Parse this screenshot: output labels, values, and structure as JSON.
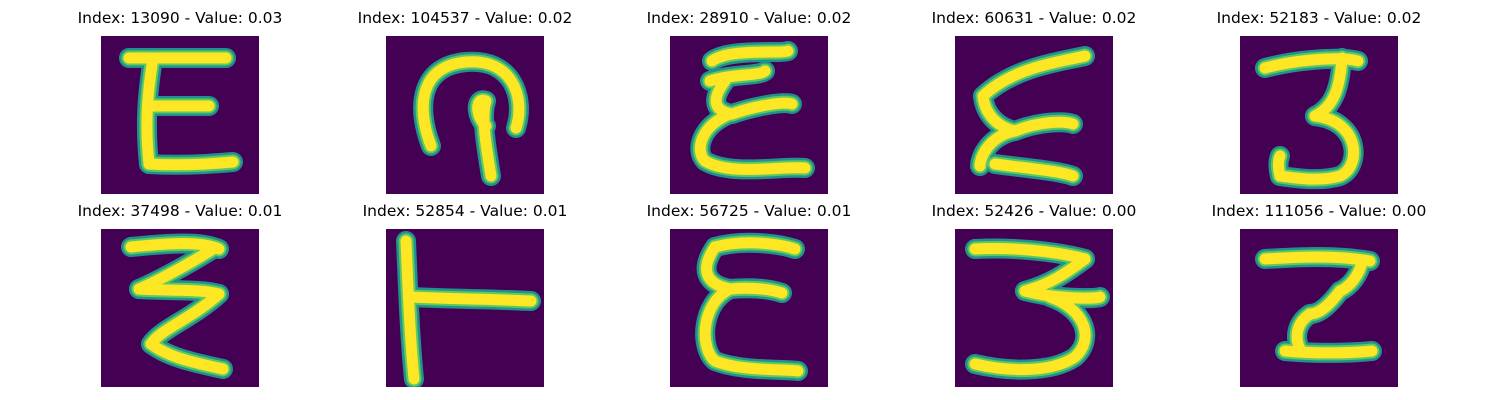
{
  "panels": [
    {
      "title": "Index: 13090 - Value: 0.03",
      "glyph": "E",
      "glyph_desc": "E-shaped handwritten sample"
    },
    {
      "title": "Index: 104537 - Value: 0.02",
      "glyph": "arch",
      "glyph_desc": "arch / hook shaped sample"
    },
    {
      "title": "Index: 28910 - Value: 0.02",
      "glyph": "E-curly",
      "glyph_desc": "curly E-shaped sample"
    },
    {
      "title": "Index: 60631 - Value: 0.02",
      "glyph": "Z-slant",
      "glyph_desc": "slanted zigzag sample"
    },
    {
      "title": "Index: 52183 - Value: 0.02",
      "glyph": "3",
      "glyph_desc": "3-shaped sample"
    },
    {
      "title": "Index: 37498 - Value: 0.01",
      "glyph": "zigzag",
      "glyph_desc": "zigzag sample"
    },
    {
      "title": "Index: 52854 - Value: 0.01",
      "glyph": "T-side",
      "glyph_desc": "sideways T sample"
    },
    {
      "title": "Index: 56725 - Value: 0.01",
      "glyph": "E-loop",
      "glyph_desc": "looped E sample"
    },
    {
      "title": "Index: 52426 - Value: 0.00",
      "glyph": "3-wide",
      "glyph_desc": "wide 3-shaped sample"
    },
    {
      "title": "Index: 111056 - Value: 0.00",
      "glyph": "Z-block",
      "glyph_desc": "block Z-shaped sample"
    }
  ],
  "colors": {
    "background": "#440154",
    "stroke_core": "#fde725",
    "stroke_edge": "#21918c",
    "stroke_mid": "#5ec962"
  }
}
